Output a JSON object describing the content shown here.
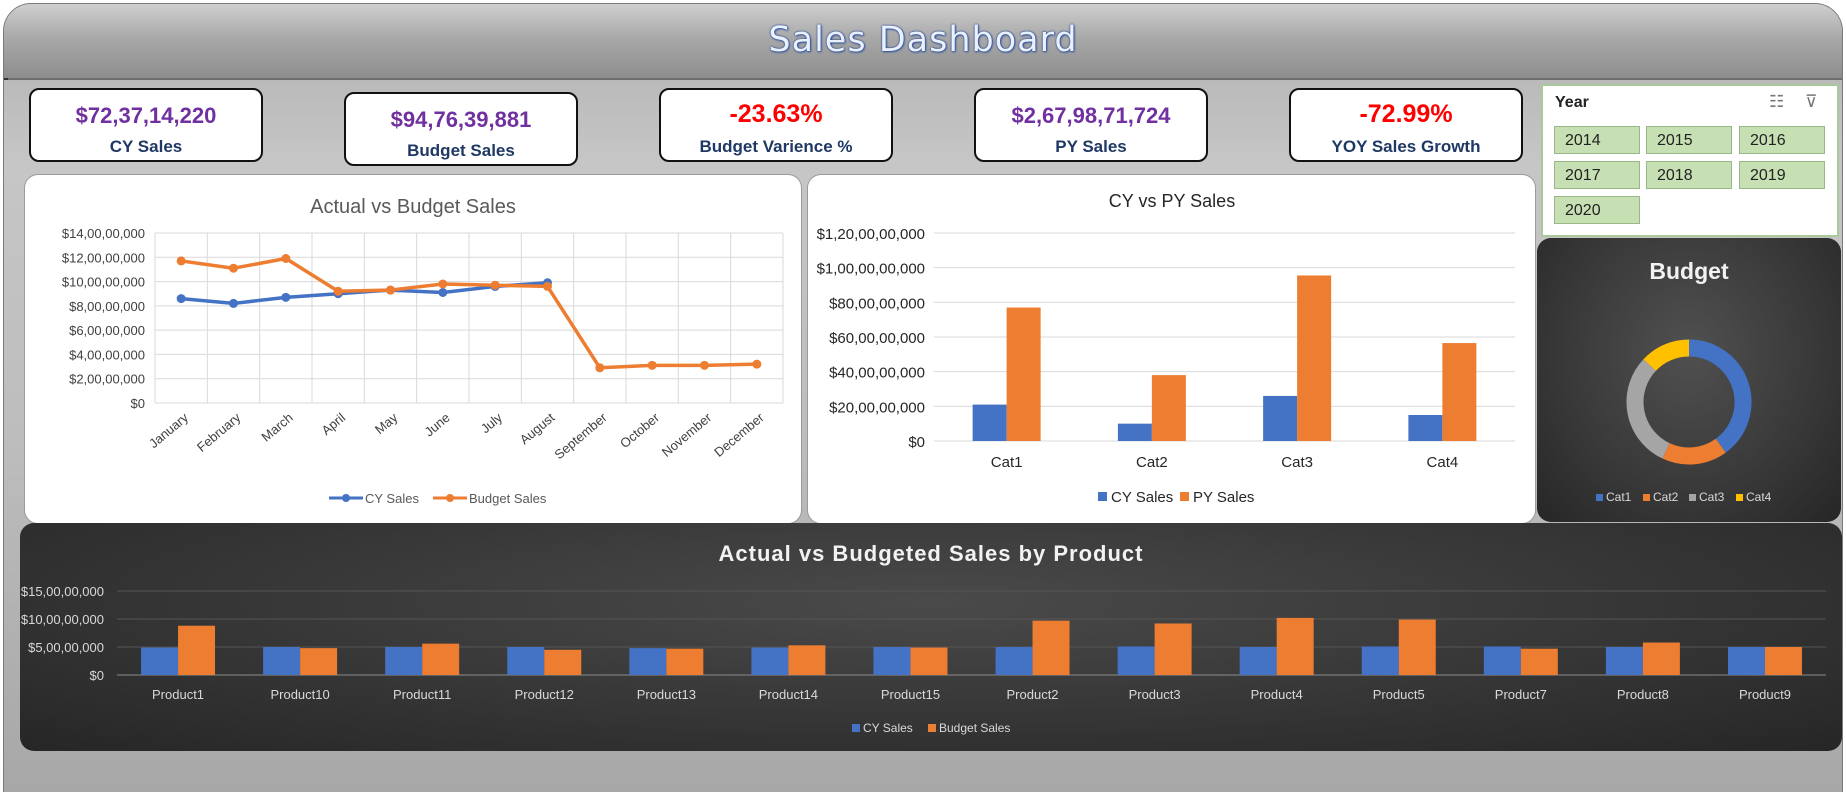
{
  "title": "Sales Dashboard",
  "kpis": [
    {
      "value": "$72,37,14,220",
      "label": "CY Sales",
      "color": "#7030a0"
    },
    {
      "value": "$94,76,39,881",
      "label": "Budget Sales",
      "color": "#7030a0"
    },
    {
      "value": "-23.63%",
      "label": "Budget Varience %",
      "color": "#ff0000"
    },
    {
      "value": "$2,67,98,71,724",
      "label": "PY Sales",
      "color": "#7030a0"
    },
    {
      "value": "-72.99%",
      "label": "YOY Sales Growth",
      "color": "#ff0000"
    }
  ],
  "slicer": {
    "title": "Year",
    "icons": [
      "multi-select-icon",
      "clear-filter-icon"
    ],
    "items": [
      "2014",
      "2015",
      "2016",
      "2017",
      "2018",
      "2019",
      "2020"
    ]
  },
  "colors": {
    "blue": "#4472c4",
    "orange": "#ed7d31",
    "gray": "#a5a5a5",
    "yellow": "#ffc000"
  },
  "chart_data": [
    {
      "id": "actual-vs-budget",
      "type": "line",
      "title": "Actual vs Budget Sales",
      "x": [
        "January",
        "February",
        "March",
        "April",
        "May",
        "June",
        "July",
        "August",
        "September",
        "October",
        "November",
        "December"
      ],
      "yticks": [
        "$0",
        "$2,00,00,000",
        "$4,00,00,000",
        "$6,00,00,000",
        "$8,00,00,000",
        "$10,00,00,000",
        "$12,00,00,000",
        "$14,00,00,000"
      ],
      "ylim": [
        0,
        140000000
      ],
      "series": [
        {
          "name": "CY Sales",
          "color": "#4472c4",
          "values": [
            86000000,
            82000000,
            87000000,
            90000000,
            93000000,
            91000000,
            96000000,
            99000000,
            null,
            null,
            null,
            null
          ]
        },
        {
          "name": "Budget Sales",
          "color": "#ed7d31",
          "values": [
            117000000,
            111000000,
            119000000,
            92000000,
            93000000,
            98000000,
            97000000,
            96000000,
            29000000,
            31000000,
            31000000,
            32000000
          ]
        }
      ],
      "grid": true,
      "legend": "bottom"
    },
    {
      "id": "cy-vs-py",
      "type": "bar",
      "title": "CY vs PY Sales",
      "categories": [
        "Cat1",
        "Cat2",
        "Cat3",
        "Cat4"
      ],
      "yticks": [
        "$0",
        "$20,00,00,000",
        "$40,00,00,000",
        "$60,00,00,000",
        "$80,00,00,000",
        "$1,00,00,00,000",
        "$1,20,00,00,000"
      ],
      "ylim": [
        0,
        1200000000
      ],
      "series": [
        {
          "name": "CY Sales",
          "color": "#4472c4",
          "values": [
            210000000,
            100000000,
            260000000,
            150000000
          ]
        },
        {
          "name": "PY Sales",
          "color": "#ed7d31",
          "values": [
            770000000,
            380000000,
            955000000,
            565000000
          ]
        }
      ],
      "grid": true,
      "legend": "bottom"
    },
    {
      "id": "budget-donut",
      "type": "pie",
      "title": "Budget",
      "categories": [
        "Cat1",
        "Cat2",
        "Cat3",
        "Cat4"
      ],
      "values": [
        40,
        17,
        30,
        13
      ],
      "colors": [
        "#4472c4",
        "#ed7d31",
        "#a5a5a5",
        "#ffc000"
      ],
      "legend": "bottom"
    },
    {
      "id": "by-product",
      "type": "bar",
      "title": "Actual vs Budgeted Sales by Product",
      "categories": [
        "Product1",
        "Product10",
        "Product11",
        "Product12",
        "Product13",
        "Product14",
        "Product15",
        "Product2",
        "Product3",
        "Product4",
        "Product5",
        "Product7",
        "Product8",
        "Product9"
      ],
      "yticks": [
        "$0",
        "$5,00,00,000",
        "$10,00,00,000",
        "$15,00,00,000"
      ],
      "ylim": [
        0,
        150000000
      ],
      "series": [
        {
          "name": "CY Sales",
          "color": "#4472c4",
          "values": [
            49000000,
            50000000,
            50000000,
            50000000,
            48000000,
            49000000,
            50000000,
            50000000,
            51000000,
            50000000,
            51000000,
            51000000,
            50000000,
            50000000
          ]
        },
        {
          "name": "Budget Sales",
          "color": "#ed7d31",
          "values": [
            88000000,
            48000000,
            56000000,
            45000000,
            47000000,
            53000000,
            49000000,
            97000000,
            92000000,
            102000000,
            99000000,
            47000000,
            58000000,
            50000000
          ]
        }
      ],
      "grid": true,
      "legend": "bottom"
    }
  ]
}
